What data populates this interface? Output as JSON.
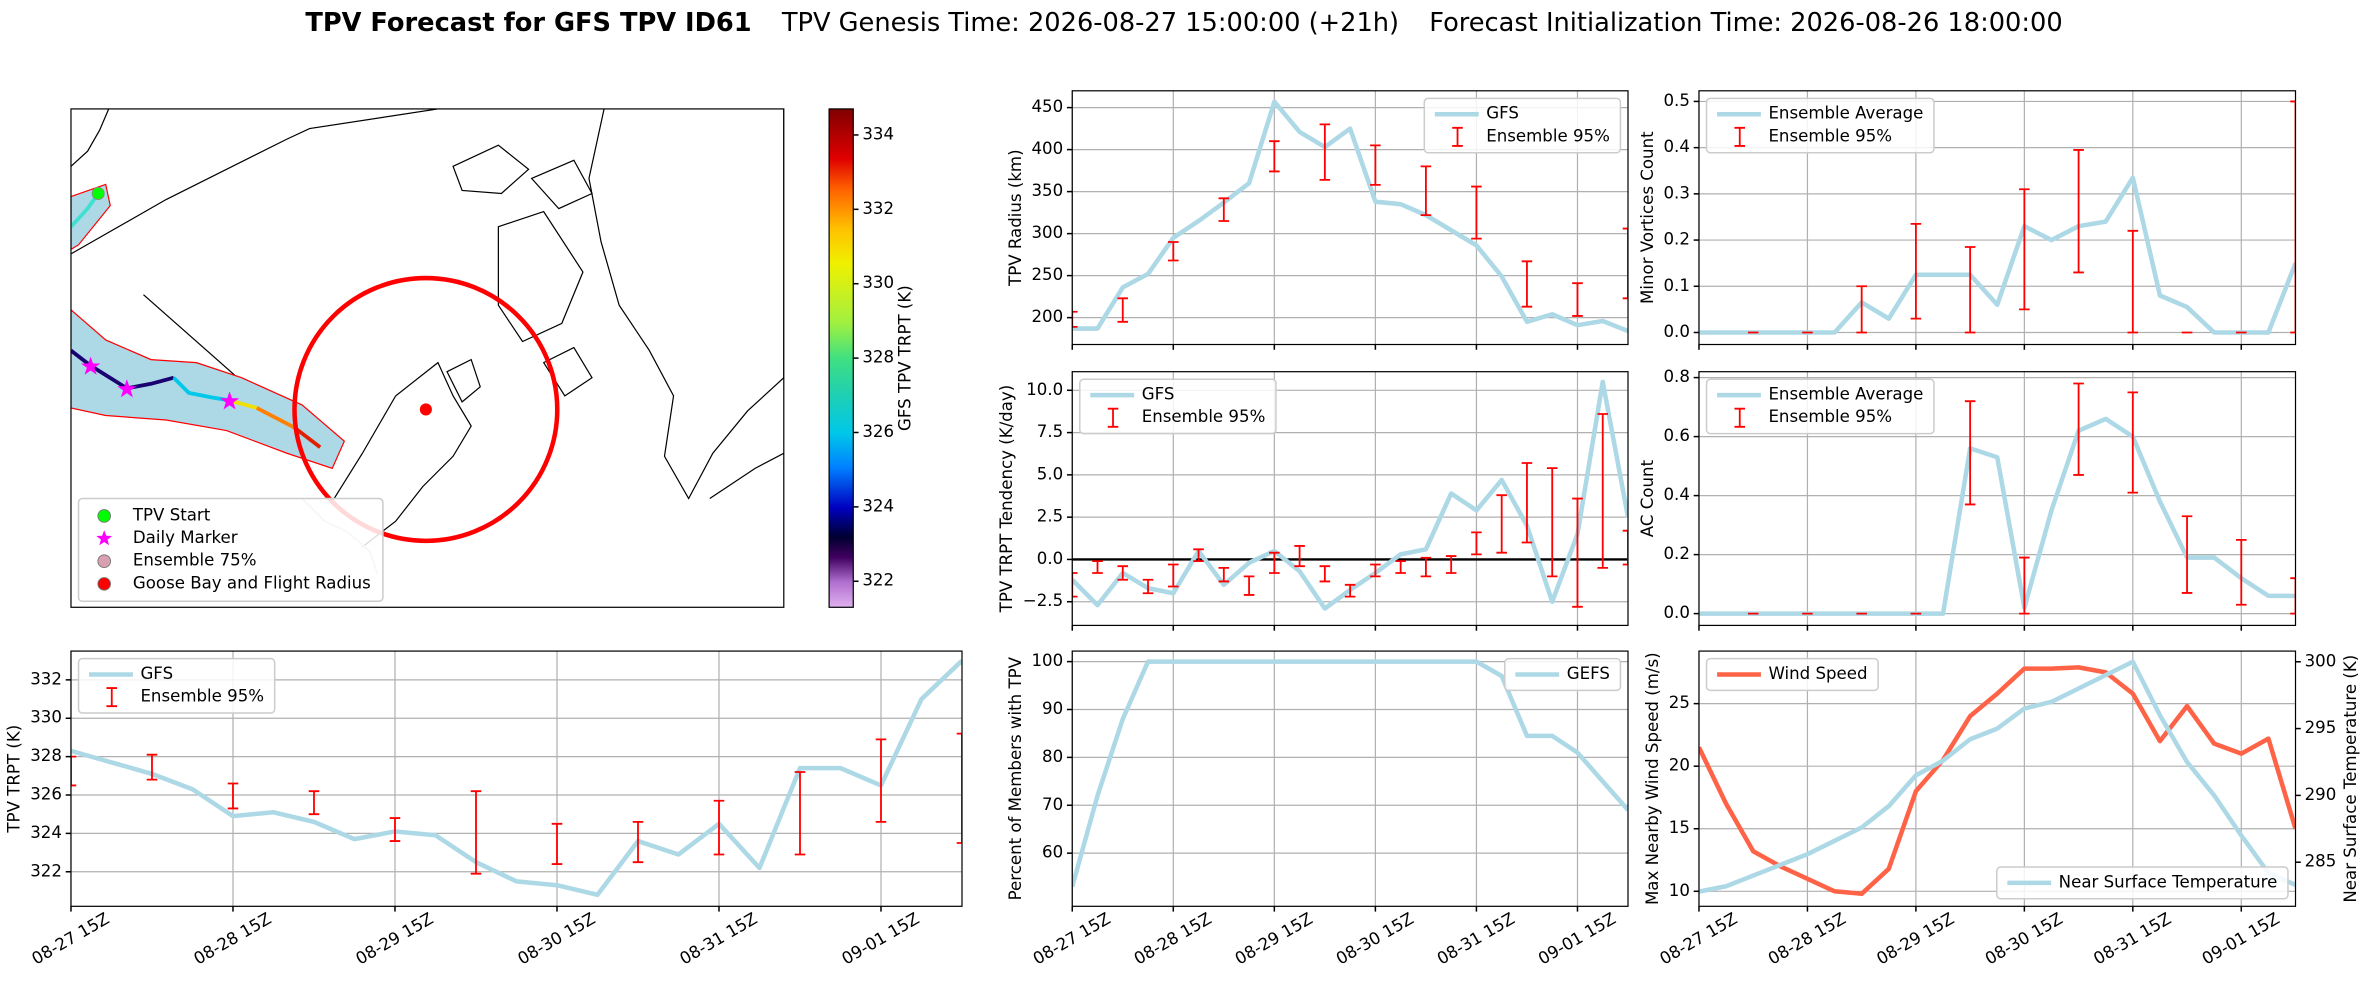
{
  "title": "TPV Forecast for GFS TPV ID61",
  "subtitles": [
    "TPV Genesis Time: 2026-08-27 15:00:00 (+21h)",
    "Forecast Initialization Time: 2026-08-26 18:00:00"
  ],
  "chart_data": [
    {
      "type": "map",
      "colorbar_label": "GFS TPV TRPT (K)",
      "clim": [
        321.3,
        334.7
      ],
      "cticks": [
        322,
        324,
        326,
        328,
        330,
        332,
        334
      ],
      "legend": "lower left",
      "legend_items": [
        {
          "name": "TPV Start",
          "color": "#00ff00",
          "marker": "circle"
        },
        {
          "name": "Daily Marker",
          "color": "#ff00ff",
          "marker": "star"
        },
        {
          "name": "Ensemble 75%",
          "color": "#d8a0b0",
          "marker": "circle"
        },
        {
          "name": "Goose Bay and Flight Radius",
          "color": "#ff0000",
          "marker": "circle"
        }
      ]
    },
    {
      "type": "line",
      "ylabel": "TPV Radius (km)",
      "ylim": [
        168,
        470
      ],
      "yticks": [
        200,
        250,
        300,
        350,
        400,
        450
      ],
      "grid": true,
      "legend": "upper right",
      "series": [
        {
          "name": "GFS",
          "color": "#add8e6",
          "values": [
            187,
            187,
            236,
            252,
            295,
            315,
            337,
            360,
            457,
            421,
            403,
            425,
            338,
            335,
            322,
            304,
            286,
            249,
            195,
            204,
            191,
            196,
            184
          ]
        },
        {
          "name": "Ensemble 95%",
          "type": "errorbar",
          "color": "#ff0000",
          "low": [
            189,
            null,
            195,
            null,
            268,
            null,
            315,
            null,
            374,
            null,
            364,
            null,
            358,
            null,
            322,
            null,
            294,
            null,
            213,
            null,
            202,
            null,
            223
          ],
          "high": [
            207,
            null,
            223,
            null,
            290,
            null,
            342,
            null,
            410,
            null,
            430,
            null,
            405,
            null,
            380,
            null,
            356,
            null,
            267,
            null,
            241,
            null,
            306
          ]
        }
      ]
    },
    {
      "type": "line",
      "ylabel": "Minor Vortices Count",
      "ylim": [
        -0.026,
        0.523
      ],
      "yticks": [
        {
          "value": 0,
          "label": "0.0"
        },
        0.1,
        0.2,
        0.3,
        0.4,
        0.5
      ],
      "grid": true,
      "legend": "upper left",
      "series": [
        {
          "name": "Ensemble Average",
          "color": "#add8e6",
          "values": [
            0,
            0,
            0,
            0,
            0,
            0,
            0.065,
            0.03,
            0.125,
            0.125,
            0.125,
            0.06,
            0.23,
            0.2,
            0.23,
            0.24,
            0.335,
            0.08,
            0.055,
            0,
            0,
            0,
            0.15
          ]
        },
        {
          "name": "Ensemble 95%",
          "type": "errorbar",
          "color": "#ff0000",
          "low": [
            null,
            null,
            0,
            null,
            0,
            null,
            0,
            null,
            0.03,
            null,
            0,
            null,
            0.05,
            null,
            0.13,
            null,
            0,
            null,
            0,
            null,
            0,
            null,
            0
          ],
          "high": [
            null,
            null,
            0,
            null,
            0,
            null,
            0.1,
            null,
            0.235,
            null,
            0.185,
            null,
            0.31,
            null,
            0.395,
            null,
            0.22,
            null,
            0,
            null,
            0,
            null,
            0.5
          ]
        }
      ]
    },
    {
      "type": "line",
      "ylabel": "TPV TRPT Tendency (K/day)",
      "ylim": [
        -3.9,
        11.1
      ],
      "yticks": [
        {
          "value": -2.5,
          "label": "−2.5"
        },
        {
          "value": 0,
          "label": "0.0"
        },
        2.5,
        {
          "value": 5,
          "label": "5.0"
        },
        7.5,
        {
          "value": 10,
          "label": "10.0"
        }
      ],
      "grid": true,
      "legend": "upper left",
      "hline": 0,
      "series": [
        {
          "name": "GFS",
          "color": "#add8e6",
          "values": [
            -1.2,
            -2.7,
            -0.8,
            -1.7,
            -2.0,
            0.5,
            -1.5,
            -0.2,
            0.5,
            -0.7,
            -2.9,
            -1.8,
            -0.8,
            0.3,
            0.6,
            3.9,
            2.9,
            4.7,
            2.0,
            -2.5,
            1.5,
            10.5,
            2.5
          ]
        },
        {
          "name": "Ensemble 95%",
          "type": "errorbar",
          "color": "#ff0000",
          "low": [
            -2.2,
            -0.8,
            -1.2,
            -2.0,
            -1.6,
            -0.1,
            -1.3,
            -2.1,
            -0.8,
            -0.4,
            -1.3,
            -2.2,
            -1.0,
            -0.8,
            -1.0,
            -0.8,
            0.3,
            0.4,
            1.0,
            -1.0,
            -2.8,
            -0.5,
            -0.3
          ],
          "high": [
            -0.8,
            -0.1,
            -0.4,
            -1.2,
            -0.3,
            0.6,
            -0.5,
            -1.0,
            0.4,
            0.8,
            -0.4,
            -1.5,
            -0.3,
            -0.1,
            0.1,
            0.2,
            1.6,
            3.8,
            5.7,
            5.4,
            3.6,
            8.6,
            1.7
          ]
        }
      ]
    },
    {
      "type": "line",
      "ylabel": "AC Count",
      "ylim": [
        -0.04,
        0.82
      ],
      "yticks": [
        {
          "value": 0,
          "label": "0.0"
        },
        0.2,
        0.4,
        0.6,
        0.8
      ],
      "grid": true,
      "legend": "upper left",
      "series": [
        {
          "name": "Ensemble Average",
          "color": "#add8e6",
          "values": [
            0,
            0,
            0,
            0,
            0,
            0,
            0,
            0,
            0,
            0,
            0.56,
            0.53,
            0.02,
            0.35,
            0.62,
            0.66,
            0.6,
            0.38,
            0.19,
            0.19,
            0.12,
            0.06,
            0.06
          ]
        },
        {
          "name": "Ensemble 95%",
          "type": "errorbar",
          "color": "#ff0000",
          "low": [
            null,
            null,
            0,
            null,
            0,
            null,
            0,
            null,
            0,
            null,
            0.37,
            null,
            0,
            null,
            0.47,
            null,
            0.41,
            null,
            0.07,
            null,
            0.03,
            null,
            0
          ],
          "high": [
            null,
            null,
            0,
            null,
            0,
            null,
            0,
            null,
            0,
            null,
            0.72,
            null,
            0.19,
            null,
            0.78,
            null,
            0.75,
            null,
            0.33,
            null,
            0.25,
            null,
            0.12
          ]
        }
      ]
    },
    {
      "type": "line",
      "ylabel": "TPV TRPT (K)",
      "ylim": [
        320.2,
        333.5
      ],
      "yticks": [
        322,
        324,
        326,
        328,
        330,
        332
      ],
      "grid": true,
      "legend": "upper left",
      "categories": [
        "08-27 15Z",
        null,
        null,
        null,
        "08-28 15Z",
        null,
        null,
        null,
        "08-29 15Z",
        null,
        null,
        null,
        "08-30 15Z",
        null,
        null,
        null,
        "08-31 15Z",
        null,
        null,
        null,
        "09-01 15Z",
        null,
        null
      ],
      "series": [
        {
          "name": "GFS",
          "color": "#add8e6",
          "values": [
            328.3,
            327.7,
            327.1,
            326.3,
            324.9,
            325.1,
            324.6,
            323.7,
            324.1,
            323.9,
            322.5,
            321.5,
            321.3,
            320.8,
            323.6,
            322.9,
            324.5,
            322.2,
            327.4,
            327.4,
            326.5,
            331,
            333.0
          ]
        },
        {
          "name": "Ensemble 95%",
          "type": "errorbar",
          "color": "#ff0000",
          "low": [
            326.5,
            null,
            326.8,
            null,
            325.3,
            null,
            325.0,
            null,
            323.6,
            null,
            321.9,
            null,
            322.4,
            null,
            322.5,
            null,
            322.9,
            null,
            322.9,
            null,
            324.6,
            null,
            323.5
          ],
          "high": [
            328.0,
            null,
            328.1,
            null,
            326.6,
            null,
            326.2,
            null,
            324.8,
            null,
            326.2,
            null,
            324.5,
            null,
            324.6,
            null,
            325.7,
            null,
            327.2,
            null,
            328.9,
            null,
            329.2
          ]
        }
      ]
    },
    {
      "type": "line",
      "ylabel": "Percent of Members with TPV",
      "ylim": [
        48.9,
        102.2
      ],
      "yticks": [
        60,
        70,
        80,
        90,
        100
      ],
      "grid": true,
      "legend": "upper right",
      "categories": [
        "08-27 15Z",
        null,
        null,
        null,
        "08-28 15Z",
        null,
        null,
        null,
        "08-29 15Z",
        null,
        null,
        null,
        "08-30 15Z",
        null,
        null,
        null,
        "08-31 15Z",
        null,
        null,
        null,
        "09-01 15Z",
        null,
        null
      ],
      "series": [
        {
          "name": "GEFS",
          "color": "#add8e6",
          "values": [
            53,
            72,
            88,
            100,
            100,
            100,
            100,
            100,
            100,
            100,
            100,
            100,
            100,
            100,
            100,
            100,
            100,
            97,
            84.5,
            84.5,
            81,
            75,
            69
          ]
        }
      ]
    },
    {
      "type": "line",
      "ylabel": "Max Nearby Wind Speed (m/s)",
      "ylabel_color": "#ff6347",
      "y2label": "Near Surface Temperature (K)",
      "y2label_color": "#4169e1",
      "ylim": [
        8.8,
        29.2
      ],
      "yticks": [
        10,
        15,
        20,
        25
      ],
      "y2lim": [
        281.7,
        300.8
      ],
      "y2ticks": [
        285,
        290,
        295,
        300
      ],
      "grid": true,
      "categories": [
        "08-27 15Z",
        null,
        null,
        null,
        "08-28 15Z",
        null,
        null,
        null,
        "08-29 15Z",
        null,
        null,
        null,
        "08-30 15Z",
        null,
        null,
        null,
        "08-31 15Z",
        null,
        null,
        null,
        "09-01 15Z",
        null,
        null
      ],
      "series": [
        {
          "name": "Wind Speed",
          "color": "#ff6347",
          "legend": "upper left",
          "values": [
            21.5,
            17,
            13.2,
            12,
            11,
            10,
            9.8,
            11.8,
            18,
            20.5,
            24,
            25.8,
            27.8,
            27.8,
            27.9,
            27.5,
            25.8,
            22,
            24.8,
            21.8,
            21,
            22.2,
            15
          ]
        },
        {
          "name": "Near Surface Temperature",
          "color": "#add8e6",
          "axis": "y2",
          "legend": "lower right",
          "values": [
            282.8,
            283.2,
            284,
            284.8,
            285.6,
            286.6,
            287.6,
            289.2,
            291.5,
            292.6,
            294.2,
            295,
            296.5,
            297,
            298,
            299,
            300,
            296,
            292.5,
            290,
            287,
            284.2,
            283.3
          ]
        }
      ]
    }
  ]
}
